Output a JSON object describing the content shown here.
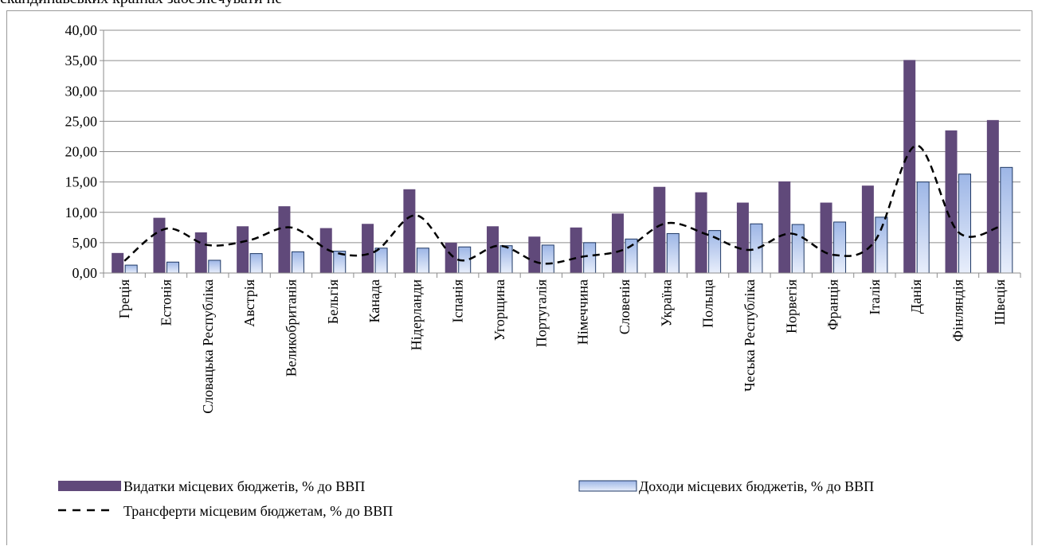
{
  "header_text": "скандинавських країнах забезпечувати не",
  "chart_data": {
    "type": "bar",
    "categories": [
      "Греція",
      "Естонія",
      "Словацька Республіка",
      "Австрія",
      "Великобританія",
      "Бельгія",
      "Канада",
      "Нідерланди",
      "Іспанія",
      "Угорщина",
      "Португалія",
      "Німеччина",
      "Словенія",
      "Україна",
      "Польща",
      "Чеська Республіка",
      "Норвегія",
      "Франція",
      "Італія",
      "Данія",
      "Фінляндія",
      "Швеція"
    ],
    "series": [
      {
        "name": "Видатки місцевих бюджетів, % до ВВП",
        "kind": "bar",
        "color": "#60497a",
        "values": [
          3.3,
          9.1,
          6.7,
          7.7,
          11.0,
          7.4,
          8.1,
          13.8,
          5.0,
          7.7,
          6.0,
          7.5,
          9.8,
          14.2,
          13.3,
          11.6,
          15.1,
          11.6,
          14.4,
          35.1,
          23.5,
          25.2
        ]
      },
      {
        "name": "Доходи місцевих бюджетів, % до ВВП",
        "kind": "bar",
        "color": "#b9cdf0",
        "values": [
          1.3,
          1.8,
          2.1,
          3.2,
          3.5,
          3.6,
          4.1,
          4.1,
          4.3,
          4.5,
          4.6,
          5.0,
          5.6,
          6.5,
          7.0,
          8.1,
          8.0,
          8.4,
          9.2,
          15.0,
          16.3,
          17.4
        ]
      },
      {
        "name": "Трансферти місцевим бюджетам, % до ВВП",
        "kind": "line",
        "color": "#000000",
        "values": [
          2.0,
          7.3,
          4.6,
          5.4,
          7.5,
          3.5,
          3.5,
          9.5,
          2.2,
          4.5,
          1.6,
          2.7,
          3.9,
          8.2,
          6.3,
          3.8,
          6.5,
          3.0,
          5.2,
          21.0,
          6.8,
          7.6
        ]
      }
    ],
    "ylim": [
      0,
      40
    ],
    "yticks": [
      "0,00",
      "5,00",
      "10,00",
      "15,00",
      "20,00",
      "25,00",
      "30,00",
      "35,00",
      "40,00"
    ],
    "grid": true,
    "legend_placement": "bottom"
  }
}
